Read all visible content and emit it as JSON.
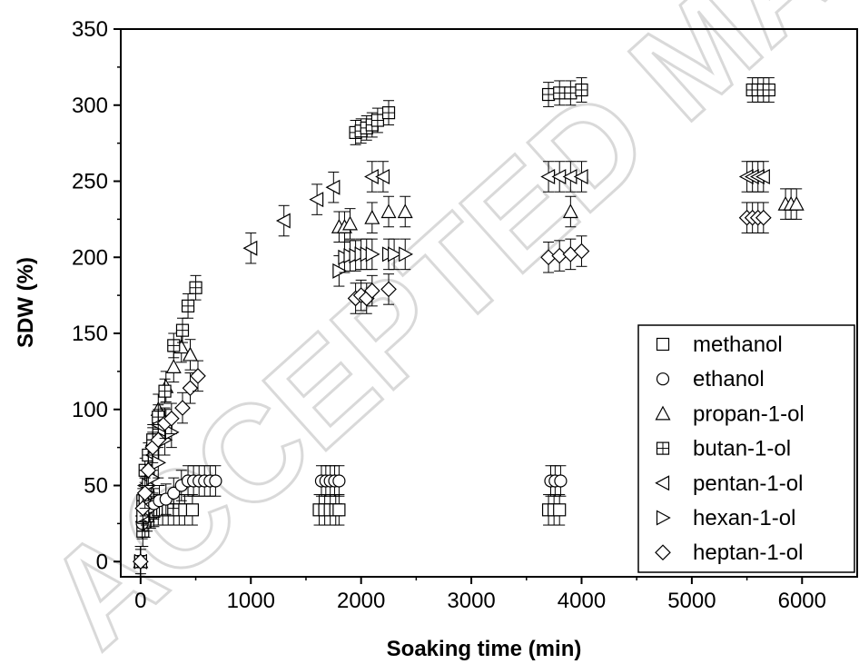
{
  "watermark": "ACCEPTED MANUSCRIPT",
  "chart_data": {
    "type": "scatter",
    "xlabel": "Soaking time (min)",
    "ylabel": "SDW (%)",
    "xlim": [
      -180,
      6500
    ],
    "ylim": [
      -10,
      350
    ],
    "xticks": [
      0,
      1000,
      2000,
      3000,
      4000,
      5000,
      6000
    ],
    "yticks": [
      0,
      50,
      100,
      150,
      200,
      250,
      300,
      350
    ],
    "grid": false,
    "legend_position": "bottom-right",
    "error_bars": true,
    "series": [
      {
        "name": "methanol",
        "marker": "square",
        "error": 10,
        "x": [
          0,
          20,
          40,
          60,
          90,
          120,
          160,
          200,
          250,
          300,
          350,
          400,
          470,
          1620,
          1670,
          1720,
          1770,
          1800,
          3700,
          3750,
          3800
        ],
        "y": [
          0,
          20,
          26,
          30,
          32,
          33,
          34,
          34,
          34,
          34,
          34,
          34,
          34,
          34,
          34,
          34,
          34,
          34,
          34,
          34,
          34
        ]
      },
      {
        "name": "ethanol",
        "marker": "circle",
        "error": 10,
        "x": [
          0,
          15,
          30,
          50,
          80,
          120,
          170,
          230,
          300,
          370,
          430,
          480,
          530,
          580,
          630,
          680,
          1640,
          1680,
          1720,
          1760,
          1800,
          3720,
          3760,
          3810
        ],
        "y": [
          0,
          25,
          30,
          34,
          36,
          38,
          40,
          41,
          45,
          50,
          53,
          53,
          53,
          53,
          53,
          53,
          53,
          53,
          53,
          53,
          53,
          53,
          53,
          53
        ]
      },
      {
        "name": "propan-1-ol",
        "marker": "triangle-up",
        "error": 10,
        "x": [
          0,
          20,
          40,
          70,
          110,
          160,
          230,
          300,
          370,
          450,
          1800,
          1850,
          1900,
          2100,
          2250,
          2400,
          3900,
          5850,
          5900,
          5950
        ],
        "y": [
          0,
          30,
          45,
          60,
          80,
          100,
          115,
          128,
          141,
          136,
          220,
          220,
          222,
          226,
          230,
          230,
          230,
          235,
          235,
          235
        ]
      },
      {
        "name": "butan-1-ol",
        "marker": "square-plus",
        "error": 8,
        "x": [
          0,
          20,
          40,
          70,
          110,
          160,
          220,
          300,
          380,
          430,
          500,
          1950,
          2000,
          2050,
          2100,
          2150,
          2250,
          3700,
          3800,
          3900,
          4000,
          5550,
          5600,
          5650,
          5700
        ],
        "y": [
          0,
          40,
          60,
          70,
          80,
          95,
          112,
          142,
          152,
          168,
          180,
          282,
          283,
          285,
          287,
          290,
          295,
          307,
          308,
          308,
          310,
          310,
          310,
          310,
          310
        ]
      },
      {
        "name": "pentan-1-ol",
        "marker": "triangle-left",
        "error": 10,
        "x": [
          0,
          20,
          40,
          70,
          110,
          160,
          230,
          1000,
          1300,
          1600,
          1750,
          2100,
          2200,
          3700,
          3800,
          3900,
          4000,
          5500,
          5550,
          5600,
          5650
        ],
        "y": [
          0,
          30,
          50,
          60,
          70,
          90,
          90,
          206,
          224,
          238,
          246,
          253,
          253,
          253,
          253,
          253,
          253,
          253,
          253,
          253,
          253
        ]
      },
      {
        "name": "hexan-1-ol",
        "marker": "triangle-right",
        "error": 10,
        "x": [
          0,
          20,
          40,
          70,
          110,
          160,
          220,
          280,
          1800,
          1850,
          1900,
          1950,
          2000,
          2050,
          2100,
          2250,
          2300,
          2400
        ],
        "y": [
          0,
          30,
          40,
          50,
          55,
          65,
          80,
          85,
          191,
          200,
          201,
          201,
          202,
          202,
          202,
          202,
          202,
          202
        ]
      },
      {
        "name": "heptan-1-ol",
        "marker": "diamond",
        "error": 10,
        "x": [
          0,
          20,
          40,
          70,
          110,
          160,
          220,
          280,
          380,
          450,
          520,
          1950,
          2000,
          2050,
          2100,
          2250,
          3700,
          3800,
          3900,
          4000,
          5500,
          5550,
          5600,
          5650
        ],
        "y": [
          0,
          35,
          45,
          60,
          75,
          80,
          91,
          94,
          101,
          114,
          122,
          173,
          175,
          173,
          178,
          179,
          200,
          201,
          202,
          204,
          226,
          226,
          226,
          226
        ]
      }
    ]
  }
}
